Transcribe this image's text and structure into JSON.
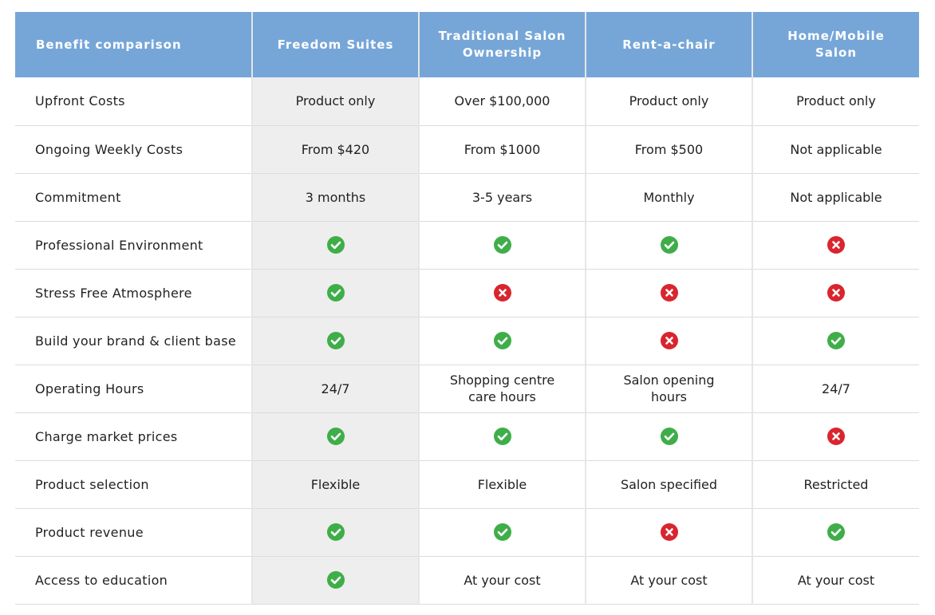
{
  "table": {
    "columns": [
      "Benefit comparison",
      "Freedom Suites",
      "Traditional Salon Ownership",
      "Rent-a-chair",
      "Home/Mobile Salon"
    ],
    "rows": [
      {
        "label": "Upfront Costs",
        "cells": [
          {
            "kind": "text",
            "value": "Product only"
          },
          {
            "kind": "text",
            "value": "Over $100,000"
          },
          {
            "kind": "text",
            "value": "Product only"
          },
          {
            "kind": "text",
            "value": "Product only"
          }
        ]
      },
      {
        "label": "Ongoing Weekly Costs",
        "cells": [
          {
            "kind": "text",
            "value": "From $420"
          },
          {
            "kind": "text",
            "value": "From $1000"
          },
          {
            "kind": "text",
            "value": "From $500"
          },
          {
            "kind": "text",
            "value": "Not applicable"
          }
        ]
      },
      {
        "label": "Commitment",
        "cells": [
          {
            "kind": "text",
            "value": "3 months"
          },
          {
            "kind": "text",
            "value": "3-5 years"
          },
          {
            "kind": "text",
            "value": "Monthly"
          },
          {
            "kind": "text",
            "value": "Not applicable"
          }
        ]
      },
      {
        "label": "Professional Environment",
        "cells": [
          {
            "kind": "check"
          },
          {
            "kind": "check"
          },
          {
            "kind": "check"
          },
          {
            "kind": "cross"
          }
        ]
      },
      {
        "label": "Stress Free Atmosphere",
        "cells": [
          {
            "kind": "check"
          },
          {
            "kind": "cross"
          },
          {
            "kind": "cross"
          },
          {
            "kind": "cross"
          }
        ]
      },
      {
        "label": "Build your brand & client base",
        "cells": [
          {
            "kind": "check"
          },
          {
            "kind": "check"
          },
          {
            "kind": "cross"
          },
          {
            "kind": "check"
          }
        ]
      },
      {
        "label": "Operating Hours",
        "cells": [
          {
            "kind": "text",
            "value": "24/7"
          },
          {
            "kind": "text",
            "value": "Shopping centre care hours"
          },
          {
            "kind": "text",
            "value": "Salon opening hours"
          },
          {
            "kind": "text",
            "value": "24/7"
          }
        ]
      },
      {
        "label": "Charge market prices",
        "cells": [
          {
            "kind": "check"
          },
          {
            "kind": "check"
          },
          {
            "kind": "check"
          },
          {
            "kind": "cross"
          }
        ]
      },
      {
        "label": "Product selection",
        "cells": [
          {
            "kind": "text",
            "value": "Flexible"
          },
          {
            "kind": "text",
            "value": "Flexible"
          },
          {
            "kind": "text",
            "value": "Salon specified"
          },
          {
            "kind": "text",
            "value": "Restricted"
          }
        ]
      },
      {
        "label": "Product revenue",
        "cells": [
          {
            "kind": "check"
          },
          {
            "kind": "check"
          },
          {
            "kind": "cross"
          },
          {
            "kind": "check"
          }
        ]
      },
      {
        "label": "Access to education",
        "cells": [
          {
            "kind": "check"
          },
          {
            "kind": "text",
            "value": "At your cost"
          },
          {
            "kind": "text",
            "value": "At your cost"
          },
          {
            "kind": "text",
            "value": "At your cost"
          }
        ]
      }
    ]
  },
  "icons": {
    "check": "check-circle-icon",
    "cross": "cross-circle-icon"
  },
  "colors": {
    "header_bg": "#76a6d7",
    "highlight_column_bg": "#eeeeee",
    "check": "#3fae49",
    "cross": "#d9252e"
  }
}
